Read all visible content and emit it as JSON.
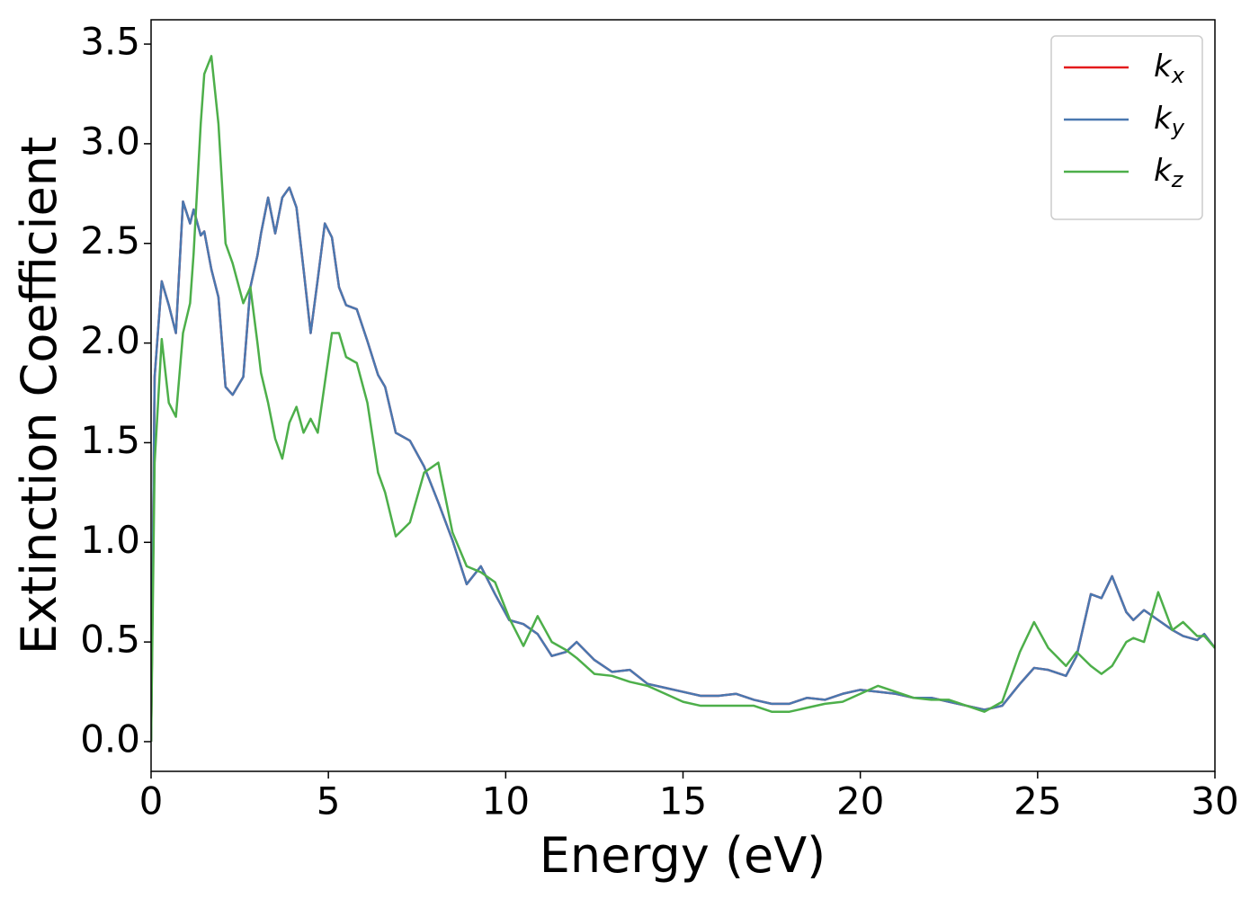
{
  "chart_data": {
    "type": "line",
    "xlabel": "Energy (eV)",
    "ylabel": "Extinction Coefficient",
    "x": [
      0,
      0.1,
      0.3,
      0.5,
      0.7,
      0.9,
      1.1,
      1.2,
      1.4,
      1.5,
      1.7,
      1.9,
      2.1,
      2.3,
      2.6,
      2.8,
      3.0,
      3.1,
      3.3,
      3.5,
      3.7,
      3.9,
      4.1,
      4.3,
      4.5,
      4.7,
      4.9,
      5.1,
      5.3,
      5.5,
      5.8,
      6.1,
      6.4,
      6.6,
      6.9,
      7.3,
      7.7,
      8.1,
      8.5,
      8.9,
      9.3,
      9.7,
      10.1,
      10.5,
      10.9,
      11.3,
      11.7,
      12.0,
      12.5,
      13.0,
      13.5,
      14.0,
      14.5,
      15.0,
      15.5,
      16.0,
      16.5,
      17.0,
      17.5,
      18.0,
      18.5,
      19.0,
      19.5,
      20.0,
      20.5,
      21.0,
      21.5,
      22.0,
      22.5,
      23.0,
      23.5,
      24.0,
      24.5,
      24.9,
      25.3,
      25.8,
      26.1,
      26.5,
      26.8,
      27.1,
      27.5,
      27.7,
      28.0,
      28.4,
      28.8,
      29.1,
      29.5,
      29.7,
      30.0
    ],
    "series": [
      {
        "name": "kx",
        "color": "#e41a1c",
        "values": [
          0,
          1.83,
          2.31,
          2.19,
          2.05,
          2.71,
          2.6,
          2.67,
          2.54,
          2.56,
          2.37,
          2.23,
          1.78,
          1.74,
          1.83,
          2.28,
          2.44,
          2.55,
          2.73,
          2.55,
          2.73,
          2.78,
          2.68,
          2.37,
          2.05,
          2.32,
          2.6,
          2.53,
          2.28,
          2.19,
          2.17,
          2.01,
          1.84,
          1.78,
          1.55,
          1.51,
          1.38,
          1.2,
          1.01,
          0.79,
          0.88,
          0.74,
          0.61,
          0.59,
          0.54,
          0.43,
          0.45,
          0.5,
          0.41,
          0.35,
          0.36,
          0.29,
          0.27,
          0.25,
          0.23,
          0.23,
          0.24,
          0.21,
          0.19,
          0.19,
          0.22,
          0.21,
          0.24,
          0.26,
          0.25,
          0.24,
          0.22,
          0.22,
          0.2,
          0.18,
          0.16,
          0.18,
          0.29,
          0.37,
          0.36,
          0.33,
          0.43,
          0.74,
          0.72,
          0.83,
          0.65,
          0.61,
          0.66,
          0.61,
          0.56,
          0.53,
          0.51,
          0.54,
          0.47
        ]
      },
      {
        "name": "ky",
        "color": "#4a78b0",
        "values": [
          0,
          1.83,
          2.31,
          2.19,
          2.05,
          2.71,
          2.6,
          2.67,
          2.54,
          2.56,
          2.37,
          2.23,
          1.78,
          1.74,
          1.83,
          2.28,
          2.44,
          2.55,
          2.73,
          2.55,
          2.73,
          2.78,
          2.68,
          2.37,
          2.05,
          2.32,
          2.6,
          2.53,
          2.28,
          2.19,
          2.17,
          2.01,
          1.84,
          1.78,
          1.55,
          1.51,
          1.38,
          1.2,
          1.01,
          0.79,
          0.88,
          0.74,
          0.61,
          0.59,
          0.54,
          0.43,
          0.45,
          0.5,
          0.41,
          0.35,
          0.36,
          0.29,
          0.27,
          0.25,
          0.23,
          0.23,
          0.24,
          0.21,
          0.19,
          0.19,
          0.22,
          0.21,
          0.24,
          0.26,
          0.25,
          0.24,
          0.22,
          0.22,
          0.2,
          0.18,
          0.16,
          0.18,
          0.29,
          0.37,
          0.36,
          0.33,
          0.43,
          0.74,
          0.72,
          0.83,
          0.65,
          0.61,
          0.66,
          0.61,
          0.56,
          0.53,
          0.51,
          0.54,
          0.47
        ]
      },
      {
        "name": "kz",
        "color": "#4daf4a",
        "values": [
          0,
          1.4,
          2.02,
          1.7,
          1.63,
          2.05,
          2.2,
          2.45,
          3.1,
          3.35,
          3.44,
          3.1,
          2.5,
          2.4,
          2.2,
          2.28,
          2.0,
          1.85,
          1.7,
          1.52,
          1.42,
          1.6,
          1.68,
          1.55,
          1.62,
          1.55,
          1.8,
          2.05,
          2.05,
          1.93,
          1.9,
          1.7,
          1.35,
          1.25,
          1.03,
          1.1,
          1.35,
          1.4,
          1.05,
          0.88,
          0.85,
          0.8,
          0.62,
          0.48,
          0.63,
          0.5,
          0.46,
          0.42,
          0.34,
          0.33,
          0.3,
          0.28,
          0.24,
          0.2,
          0.18,
          0.18,
          0.18,
          0.18,
          0.15,
          0.15,
          0.17,
          0.19,
          0.2,
          0.24,
          0.28,
          0.25,
          0.22,
          0.21,
          0.21,
          0.18,
          0.15,
          0.2,
          0.45,
          0.6,
          0.47,
          0.38,
          0.45,
          0.38,
          0.34,
          0.38,
          0.5,
          0.52,
          0.5,
          0.75,
          0.56,
          0.6,
          0.53,
          0.53,
          0.47
        ]
      }
    ],
    "xlim": [
      0,
      30
    ],
    "xticks": [
      0,
      5,
      10,
      15,
      20,
      25,
      30
    ],
    "ylim": [
      -0.149,
      3.622
    ],
    "yticks": [
      {
        "value": 0,
        "label": "0.0"
      },
      0.5,
      {
        "value": 1,
        "label": "1.0"
      },
      1.5,
      {
        "value": 2,
        "label": "2.0"
      },
      2.5,
      {
        "value": 3,
        "label": "3.0"
      },
      3.5
    ],
    "legend": "upper right",
    "grid": false
  }
}
